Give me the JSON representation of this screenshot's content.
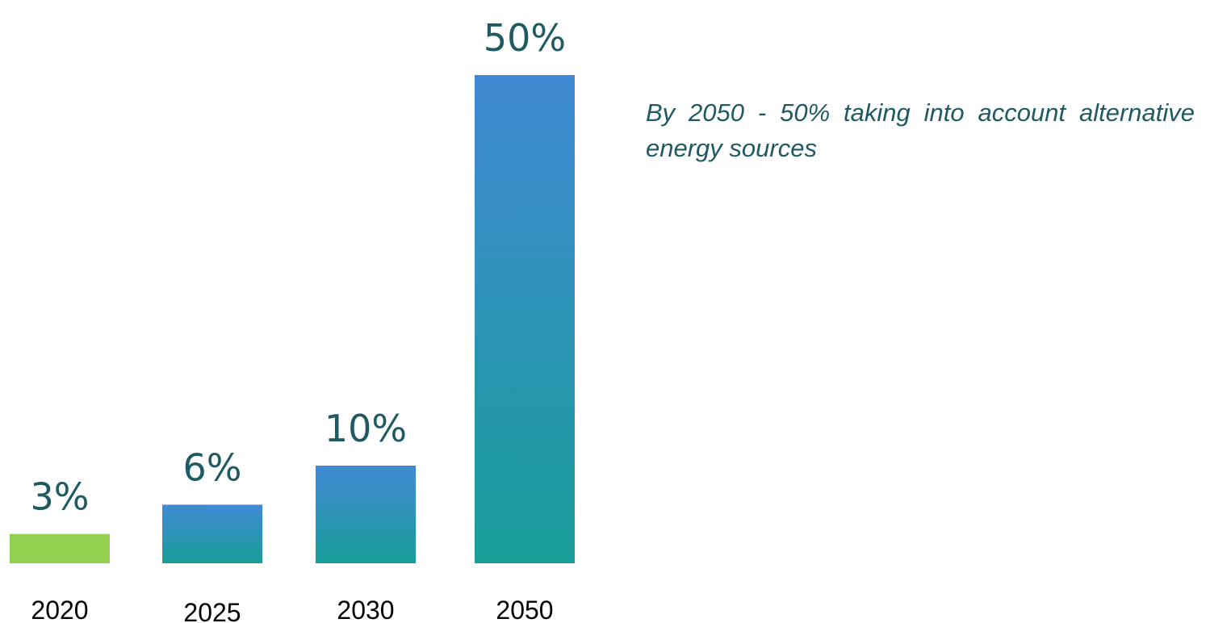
{
  "chart_data": {
    "type": "bar",
    "categories": [
      "2020",
      "2025",
      "2030",
      "2050"
    ],
    "values": [
      3,
      6,
      10,
      50
    ],
    "value_labels": [
      "3%",
      "6%",
      "10%",
      "50%"
    ],
    "unit": "%",
    "title": "",
    "xlabel": "",
    "ylabel": "",
    "ylim": [
      0,
      50
    ],
    "grid": false,
    "axes_visible": false,
    "legend": "none",
    "colors": {
      "highlight_bar": "#92d050",
      "gradient_top": "#4189d4",
      "gradient_bottom": "#189e98",
      "value_text": "#1f5a63",
      "category_text": "#000000"
    },
    "highlight_index": 0
  },
  "annotation": {
    "text": "By 2050 - 50% taking into account alternative energy sources"
  }
}
